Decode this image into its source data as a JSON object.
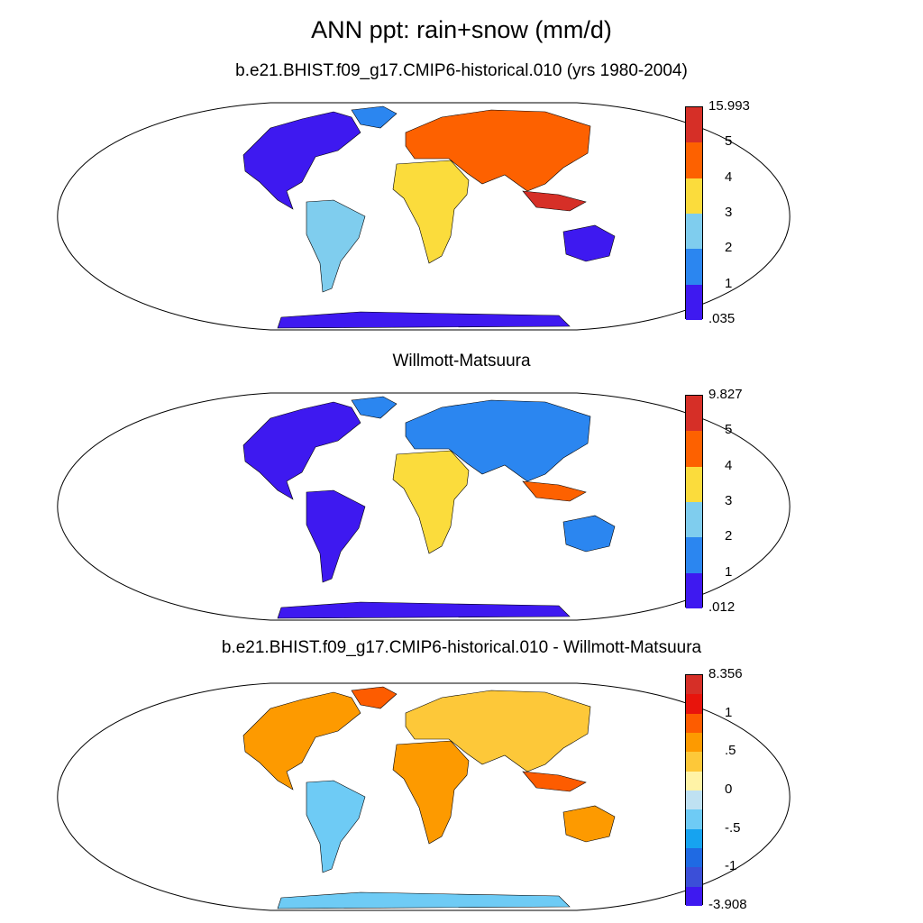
{
  "title": "ANN ppt: rain+snow (mm/d)",
  "panels": [
    {
      "title": "b.e21.BHIST.f09_g17.CMIP6-historical.010 (yrs 1980-2004)",
      "colorbar": {
        "labels": [
          "15.993",
          "5",
          "4",
          "3",
          "2",
          "1",
          ".035"
        ],
        "colors": [
          "#d62f27",
          "#fd6100",
          "#fbdc3c",
          "#7fcdee",
          "#2b86f0",
          "#3e19f0"
        ]
      }
    },
    {
      "title": "Willmott-Matsuura",
      "colorbar": {
        "labels": [
          "9.827",
          "5",
          "4",
          "3",
          "2",
          "1",
          ".012"
        ],
        "colors": [
          "#d62f27",
          "#fd6100",
          "#fbdc3c",
          "#7fcdee",
          "#2b86f0",
          "#3e19f0"
        ]
      }
    },
    {
      "title": "b.e21.BHIST.f09_g17.CMIP6-historical.010 - Willmott-Matsuura",
      "colorbar": {
        "labels": [
          "8.356",
          "1",
          ".5",
          "0",
          "-.5",
          "-1",
          "-3.908"
        ],
        "colors": [
          "#d62f27",
          "#e8140c",
          "#fd5c00",
          "#fd9a00",
          "#fdc839",
          "#fff3a6",
          "#bfe1f2",
          "#6ecbf5",
          "#16a3f0",
          "#1f6ae3",
          "#3b4fd8",
          "#3e19f0"
        ]
      }
    }
  ]
}
